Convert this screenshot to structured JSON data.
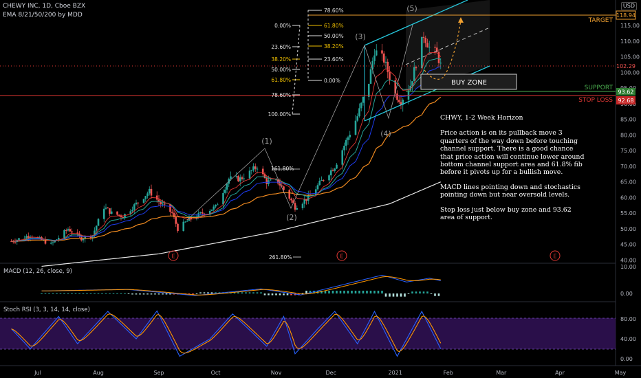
{
  "header": {
    "symbol_line": "CHEWY INC, 1D, Cboe BZX",
    "indicator_line": "EMA 8/21/50/200 by MDD",
    "scale_button": "USD"
  },
  "colors": {
    "background": "#000000",
    "up": "#26a69a",
    "down": "#ef5350",
    "fib": "#e0e0e0",
    "fib_alt": "#f0c000",
    "channel": "#26c6da",
    "target": "#f0a030",
    "support": "#4caf50",
    "stop": "#e53935",
    "ema8": "#e53935",
    "ema21": "#26a69a",
    "ema50": "#1e3cf0",
    "ema200_mid": "#f08a20",
    "ema_slow": "#e8e8e8"
  },
  "annotations": {
    "target": "TARGET",
    "support": "SUPPORT",
    "stop_loss": "STOP LOSS",
    "buy_zone": "BUY ZONE",
    "wave_1": "(1)",
    "wave_2": "(2)",
    "wave_3": "(3)",
    "wave_4": "(4)",
    "wave_5": "(5)",
    "earnings": "E",
    "fib_161_a": "161.80%",
    "fib_261": "261.80%"
  },
  "fib_left": [
    "0.00%",
    "23.60%",
    "38.20%",
    "50.00%",
    "61.80%",
    "78.60%",
    "100.00%"
  ],
  "fib_right": [
    "78.60%",
    "61.80%",
    "50.00%",
    "38.20%",
    "23.60%",
    "0.00%"
  ],
  "price_tags": {
    "target": "118.94",
    "last": "102.29",
    "support": "93.62",
    "stop": "92.68"
  },
  "note": {
    "title": "CHWY, 1-2 Week Horizon",
    "p1": "Price action is on its pullback move 3 quarters of the way down before touching channel support. There is a good chance that price action will continue lower around bottom channel support area and 61.8% fib before it pivots up for a bullish move.",
    "p2": "MACD lines pointing down and stochastics pointing down but near oversold levels.",
    "p3": "Stop loss just below buy zone and 93.62 area of support."
  },
  "macd": {
    "label": "MACD (12, 26, close, 9)",
    "ticks": [
      "10.00",
      "0.00"
    ]
  },
  "stoch": {
    "label": "Stoch RSI (3, 3, 14, 14, close)",
    "ticks": [
      "80.00",
      "40.00",
      "0.00"
    ]
  },
  "chart_data": {
    "type": "candlestick",
    "title": "CHEWY INC, 1D, Cboe BZX",
    "ylim": [
      37,
      122
    ],
    "y_ticks": [
      115,
      110,
      105,
      100,
      95,
      90,
      85,
      80,
      75,
      70,
      65,
      60,
      55,
      50,
      45,
      40
    ],
    "y_tick_labels": [
      "115.00",
      "110.00",
      "105.00",
      "100.00",
      "95.00",
      "90.00",
      "85.00",
      "80.00",
      "75.00",
      "70.00",
      "65.00",
      "60.00",
      "55.00",
      "50.00",
      "45.00",
      "40.00"
    ],
    "x_labels": [
      "Jul",
      "Aug",
      "Sep",
      "Oct",
      "Nov",
      "Dec",
      "2021",
      "Feb",
      "Mar",
      "Apr",
      "May"
    ],
    "levels": {
      "target": 118.94,
      "support": 93.62,
      "stop_loss": 92.68,
      "last": 102.29
    },
    "price_anchors": [
      [
        "2020-06-15",
        46
      ],
      [
        "2020-06-25",
        48
      ],
      [
        "2020-07-06",
        45
      ],
      [
        "2020-07-15",
        50
      ],
      [
        "2020-07-22",
        47
      ],
      [
        "2020-07-28",
        48
      ],
      [
        "2020-08-03",
        57
      ],
      [
        "2020-08-07",
        55
      ],
      [
        "2020-08-13",
        54
      ],
      [
        "2020-08-20",
        58
      ],
      [
        "2020-08-27",
        62
      ],
      [
        "2020-09-02",
        58
      ],
      [
        "2020-09-08",
        55
      ],
      [
        "2020-09-11",
        50
      ],
      [
        "2020-09-17",
        53
      ],
      [
        "2020-09-24",
        55
      ],
      [
        "2020-10-01",
        57
      ],
      [
        "2020-10-08",
        66
      ],
      [
        "2020-10-14",
        66
      ],
      [
        "2020-10-19",
        68
      ],
      [
        "2020-10-23",
        70
      ],
      [
        "2020-10-28",
        65
      ],
      [
        "2020-11-03",
        65
      ],
      [
        "2020-11-09",
        60
      ],
      [
        "2020-11-12",
        57
      ],
      [
        "2020-11-19",
        60
      ],
      [
        "2020-11-27",
        66
      ],
      [
        "2020-12-03",
        70
      ],
      [
        "2020-12-09",
        78
      ],
      [
        "2020-12-15",
        86
      ],
      [
        "2020-12-21",
        97
      ],
      [
        "2020-12-24",
        107
      ],
      [
        "2020-12-29",
        104
      ],
      [
        "2021-01-04",
        93
      ],
      [
        "2021-01-07",
        91
      ],
      [
        "2021-01-12",
        96
      ],
      [
        "2021-01-19",
        112
      ],
      [
        "2021-01-22",
        108
      ],
      [
        "2021-01-26",
        106
      ],
      [
        "2021-01-28",
        102.3
      ]
    ],
    "ema_200_anchors": [
      [
        "2020-07-01",
        38
      ],
      [
        "2020-09-01",
        42
      ],
      [
        "2020-11-01",
        49
      ],
      [
        "2021-01-01",
        58
      ],
      [
        "2021-01-28",
        65
      ]
    ],
    "macd_anchors": [
      [
        "2020-07-01",
        1
      ],
      [
        "2020-08-15",
        1.6
      ],
      [
        "2020-09-20",
        -0.8
      ],
      [
        "2020-10-25",
        1.8
      ],
      [
        "2020-11-15",
        -0.6
      ],
      [
        "2020-12-28",
        7.2
      ],
      [
        "2021-01-10",
        4.5
      ],
      [
        "2021-01-22",
        6
      ],
      [
        "2021-01-28",
        5
      ]
    ],
    "stoch_anchors": [
      [
        "2020-06-15",
        60
      ],
      [
        "2020-06-25",
        20
      ],
      [
        "2020-07-10",
        85
      ],
      [
        "2020-07-20",
        30
      ],
      [
        "2020-08-05",
        95
      ],
      [
        "2020-08-20",
        40
      ],
      [
        "2020-08-31",
        96
      ],
      [
        "2020-09-12",
        5
      ],
      [
        "2020-09-28",
        40
      ],
      [
        "2020-10-10",
        90
      ],
      [
        "2020-10-28",
        25
      ],
      [
        "2020-11-06",
        85
      ],
      [
        "2020-11-12",
        10
      ],
      [
        "2020-11-24",
        60
      ],
      [
        "2020-12-03",
        95
      ],
      [
        "2020-12-15",
        30
      ],
      [
        "2020-12-24",
        95
      ],
      [
        "2021-01-05",
        5
      ],
      [
        "2021-01-18",
        95
      ],
      [
        "2021-01-28",
        20
      ]
    ]
  }
}
